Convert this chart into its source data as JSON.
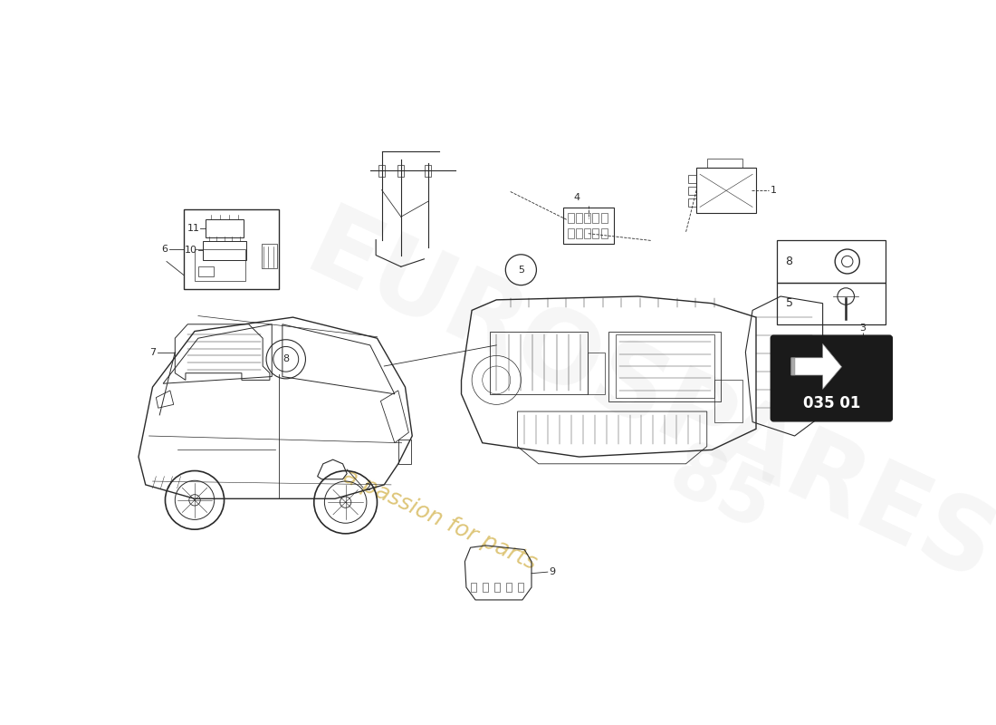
{
  "background_color": "#ffffff",
  "line_color": "#1a1a1a",
  "page_code": "035 01",
  "watermark_color": "#c8a020",
  "watermark_bg": "#d0d0d0",
  "lc": "#2a2a2a"
}
